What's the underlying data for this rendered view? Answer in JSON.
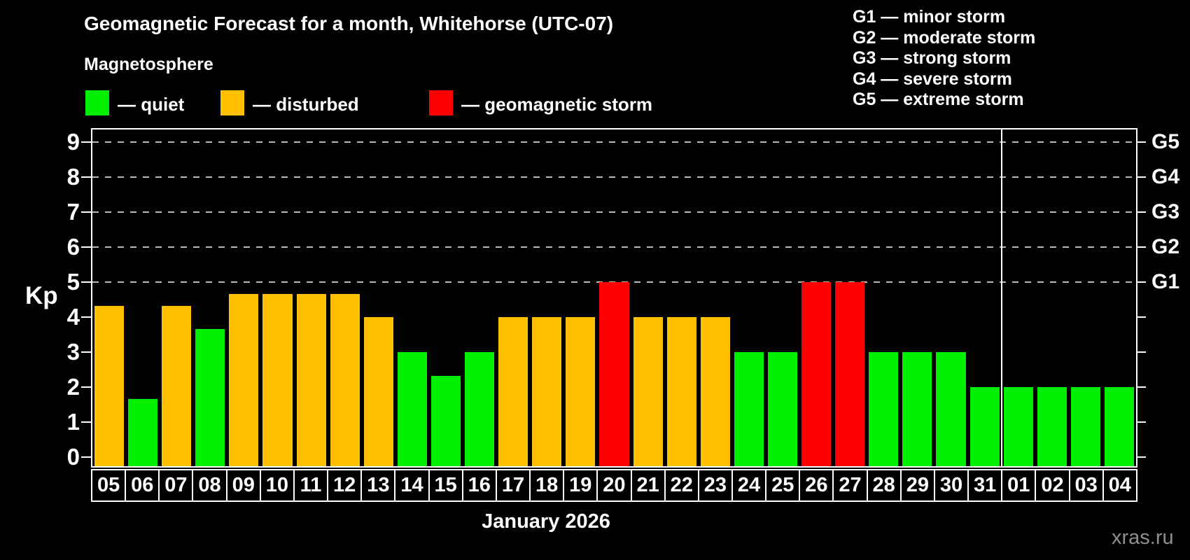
{
  "header": {
    "title": "Geomagnetic Forecast for a month, Whitehorse (UTC-07)",
    "subtitle": "Magnetosphere"
  },
  "legend": {
    "items": [
      {
        "label": "— quiet",
        "color": "#00EE00",
        "status": "quiet"
      },
      {
        "label": "— disturbed",
        "color": "#FFC000",
        "status": "disturbed"
      },
      {
        "label": "— geomagnetic storm",
        "color": "#FF0000",
        "status": "storm"
      }
    ]
  },
  "g_legend": {
    "lines": [
      "G1 — minor storm",
      "G2 — moderate storm",
      "G3 — strong storm",
      "G4 — severe storm",
      "G5 — extreme storm"
    ]
  },
  "axis": {
    "kp_label": "Kp",
    "y_ticks": [
      0,
      1,
      2,
      3,
      4,
      5,
      6,
      7,
      8,
      9
    ],
    "gridline_levels": [
      5,
      6,
      7,
      8,
      9
    ],
    "g_labels": [
      {
        "level": 5,
        "label": "G1"
      },
      {
        "level": 6,
        "label": "G2"
      },
      {
        "level": 7,
        "label": "G3"
      },
      {
        "level": 8,
        "label": "G4"
      },
      {
        "level": 9,
        "label": "G5"
      }
    ]
  },
  "x_axis": {
    "month_label": "January 2026"
  },
  "watermark": "xras.ru",
  "chart_data": {
    "type": "bar",
    "title": "Geomagnetic Forecast for a month, Whitehorse (UTC-07)",
    "xlabel": "January 2026",
    "ylabel": "Kp",
    "ylim": [
      0,
      9
    ],
    "grid": "dashed horizontal at Kp 5-9 (G1-G5)",
    "legend_position": "top-left (quiet/disturbed/storm), top-right (G1-G5 descriptions)",
    "categories": [
      "05",
      "06",
      "07",
      "08",
      "09",
      "10",
      "11",
      "12",
      "13",
      "14",
      "15",
      "16",
      "17",
      "18",
      "19",
      "20",
      "21",
      "22",
      "23",
      "24",
      "25",
      "26",
      "27",
      "28",
      "29",
      "30",
      "31",
      "01",
      "02",
      "03",
      "04"
    ],
    "values": [
      4.33,
      1.67,
      4.33,
      3.67,
      4.67,
      4.67,
      4.67,
      4.67,
      4.0,
      3.0,
      2.33,
      3.0,
      4.0,
      4.0,
      4.0,
      5.0,
      4.0,
      4.0,
      4.0,
      3.0,
      3.0,
      5.0,
      5.0,
      3.0,
      3.0,
      3.0,
      2.0,
      2.0,
      2.0,
      2.0,
      2.0
    ],
    "statuses": [
      "disturbed",
      "quiet",
      "disturbed",
      "quiet",
      "disturbed",
      "disturbed",
      "disturbed",
      "disturbed",
      "disturbed",
      "quiet",
      "quiet",
      "quiet",
      "disturbed",
      "disturbed",
      "disturbed",
      "storm",
      "disturbed",
      "disturbed",
      "disturbed",
      "quiet",
      "quiet",
      "storm",
      "storm",
      "quiet",
      "quiet",
      "quiet",
      "quiet",
      "quiet",
      "quiet",
      "quiet",
      "quiet"
    ],
    "colors": {
      "quiet": "#00EE00",
      "disturbed": "#FFC000",
      "storm": "#FF0000"
    },
    "separator_before_index": 27
  }
}
